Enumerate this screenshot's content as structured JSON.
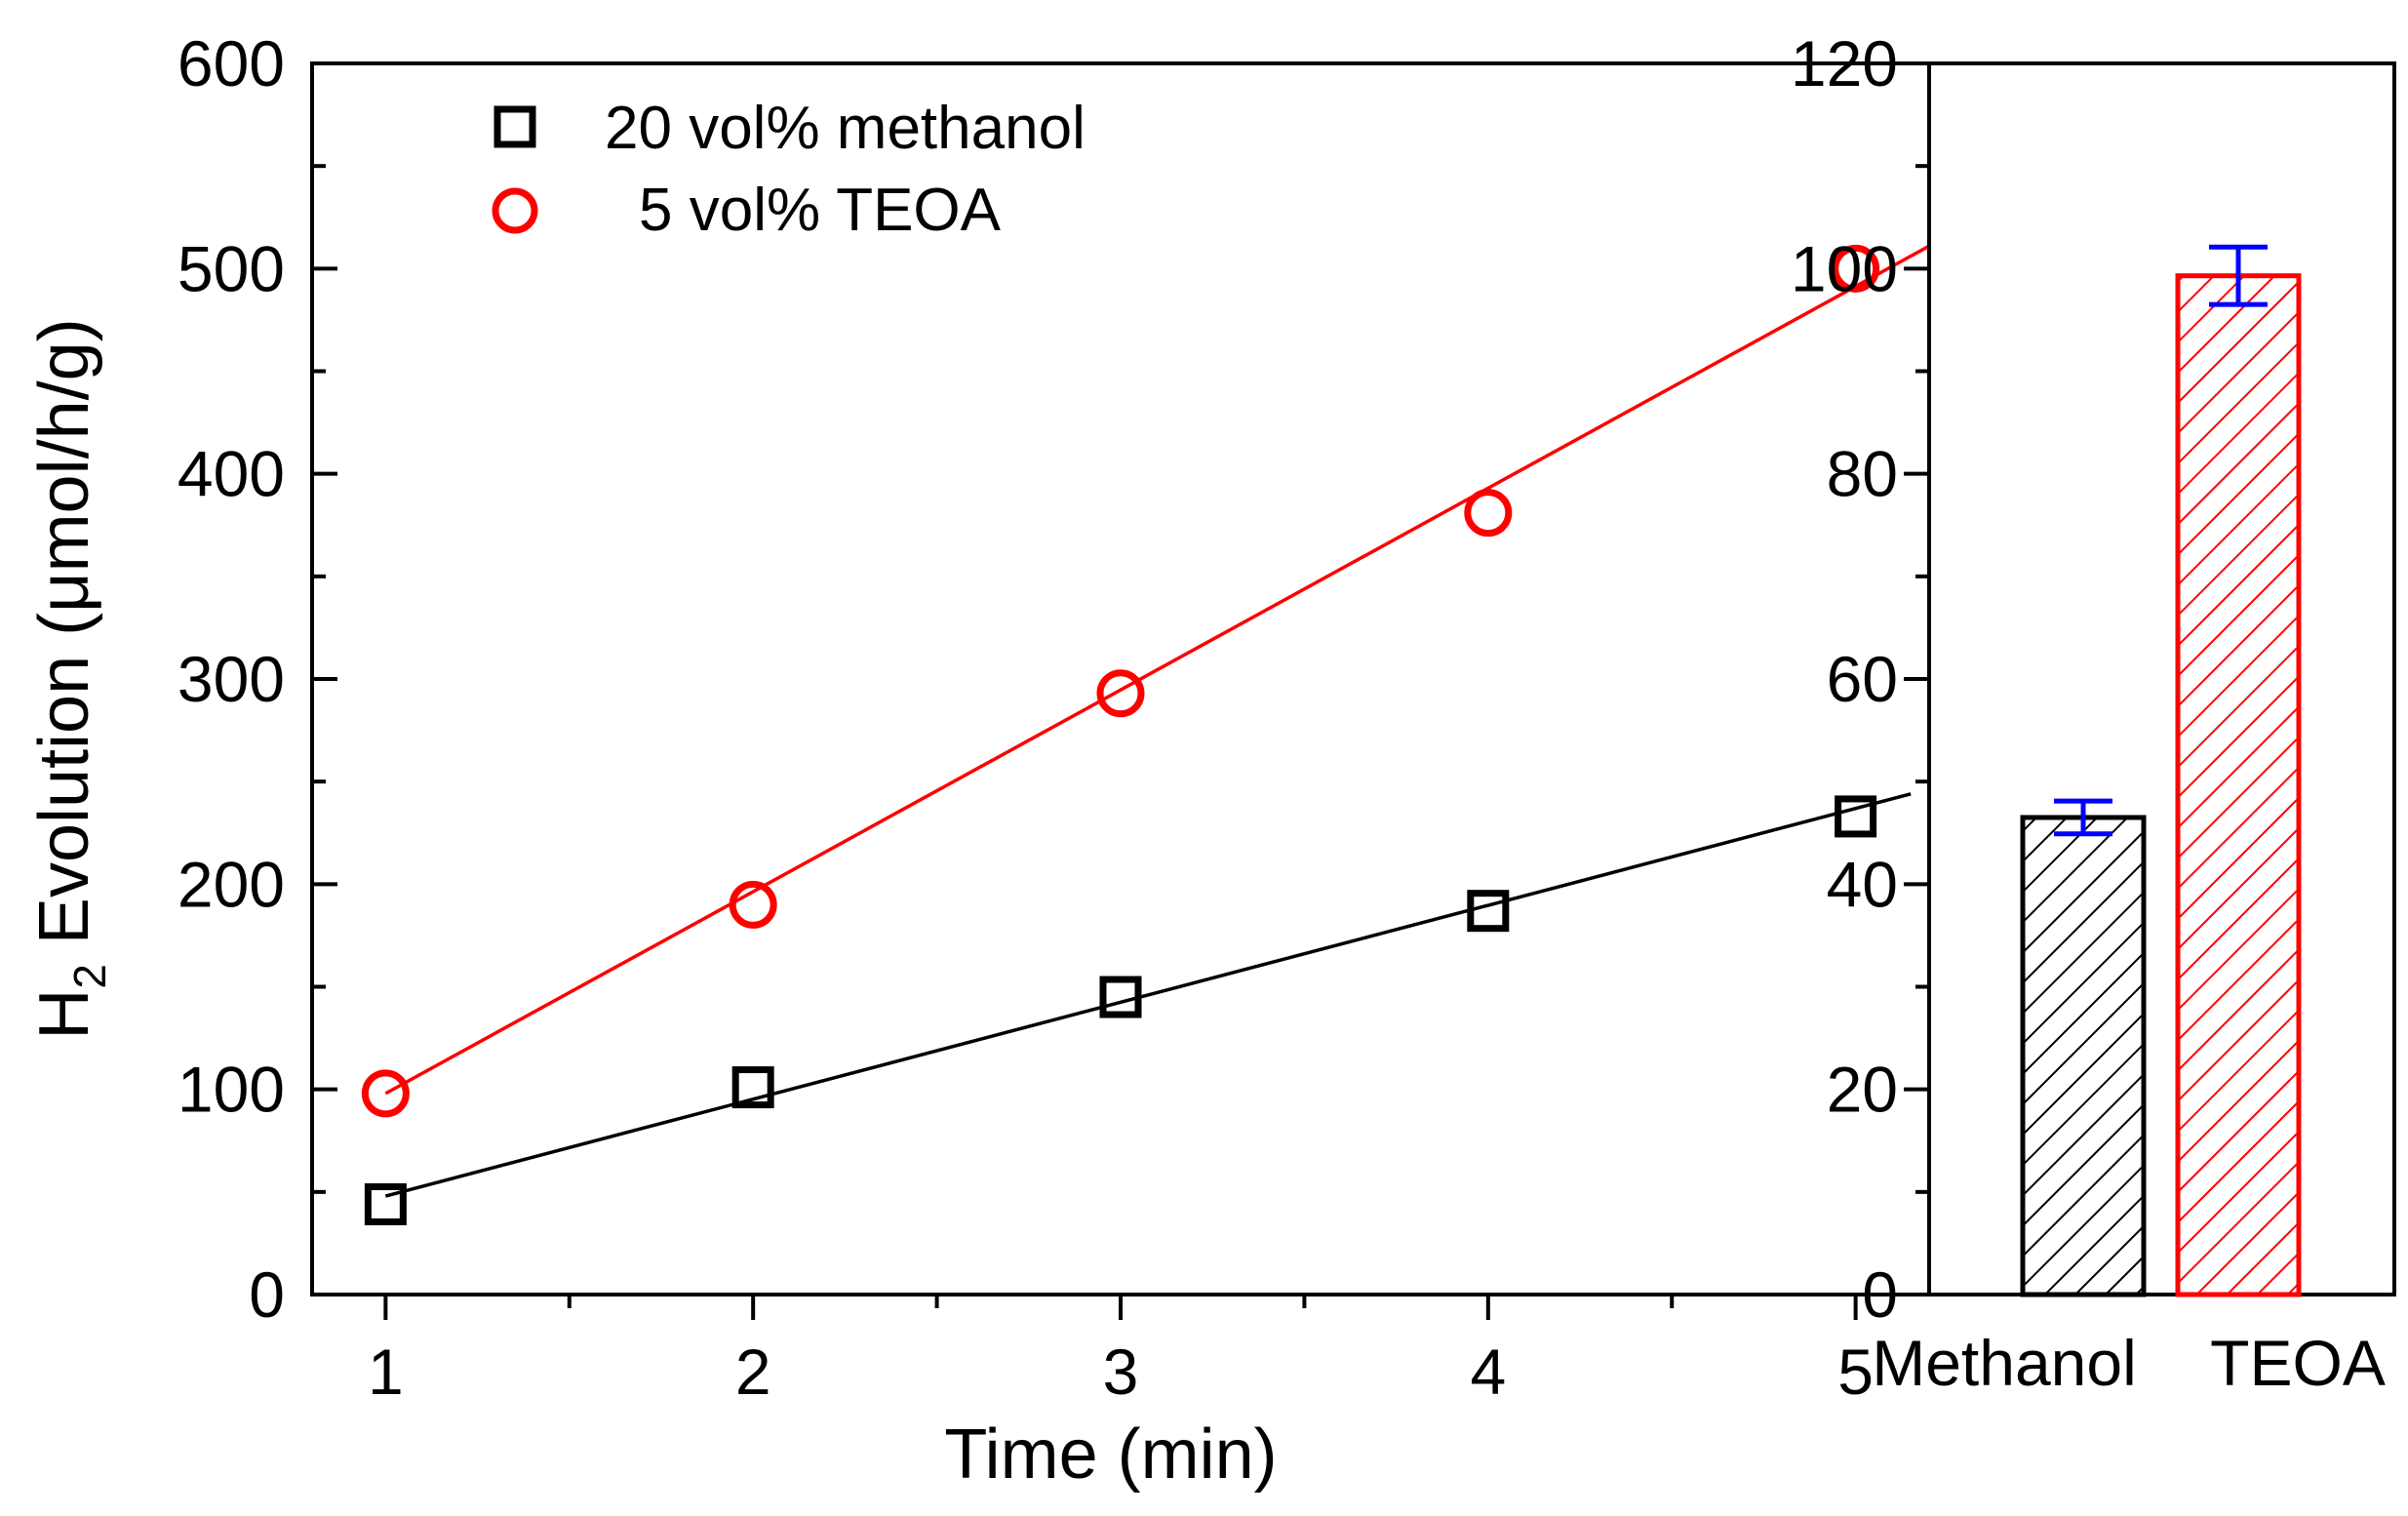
{
  "chart_data": [
    {
      "type": "scatter",
      "xlabel": "Time (min)",
      "ylabel_prefix": "H",
      "ylabel_subscript": "2",
      "ylabel_suffix": " Evolution (μmol/h/g)",
      "xlim": [
        0.8,
        5.2
      ],
      "ylim": [
        0,
        600
      ],
      "xticks": [
        1,
        2,
        3,
        4,
        5
      ],
      "yticks": [
        0,
        100,
        200,
        300,
        400,
        500,
        600
      ],
      "legend_position": "top-left",
      "series": [
        {
          "name": "20 vol% methanol",
          "marker": "square",
          "color": "#000000",
          "x": [
            1,
            2,
            3,
            4,
            5
          ],
          "y": [
            44,
            101,
            145,
            187,
            233
          ],
          "fit": {
            "x": [
              1,
              5.15
            ],
            "y": [
              48,
              244
            ]
          }
        },
        {
          "name": "5 vol% TEOA",
          "marker": "circle",
          "color": "#ff0000",
          "x": [
            1,
            2,
            3,
            4,
            5
          ],
          "y": [
            98,
            190,
            293,
            381,
            500
          ],
          "fit": {
            "x": [
              1,
              5.2
            ],
            "y": [
              98,
              511
            ]
          }
        }
      ]
    },
    {
      "type": "bar",
      "categories": [
        "Methanol",
        "TEOA"
      ],
      "values": [
        46.5,
        99.3
      ],
      "errors": [
        1.6,
        2.8
      ],
      "colors": [
        "#000000",
        "#ff0000"
      ],
      "error_bar_color": "#0000ff",
      "hatch": "diagonal",
      "ylim": [
        0,
        120
      ],
      "yticks": [
        0,
        20,
        40,
        60,
        80,
        100,
        120
      ]
    }
  ]
}
